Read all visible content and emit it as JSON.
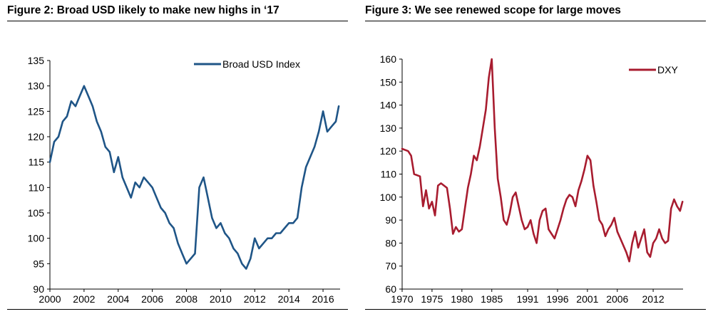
{
  "figures": [
    {
      "title": "Figure 2: Broad USD likely to make new highs in ‘17",
      "color": "#1f5587",
      "chart_data": {
        "type": "line",
        "title": "Figure 2: Broad USD likely to make new highs in ‘17",
        "xlabel": "",
        "ylabel": "",
        "xlim": [
          2000,
          2017
        ],
        "ylim": [
          90,
          135
        ],
        "xticks": [
          2000,
          2002,
          2004,
          2006,
          2008,
          2010,
          2012,
          2014,
          2016
        ],
        "yticks": [
          90,
          95,
          100,
          105,
          110,
          115,
          120,
          125,
          130,
          135
        ],
        "legend_position": "top-right",
        "grid": false,
        "series": [
          {
            "name": "Broad USD Index",
            "color": "#1f5587",
            "x": [
              2000.0,
              2000.25,
              2000.5,
              2000.75,
              2001.0,
              2001.25,
              2001.5,
              2001.75,
              2002.0,
              2002.25,
              2002.5,
              2002.75,
              2003.0,
              2003.25,
              2003.5,
              2003.75,
              2004.0,
              2004.25,
              2004.5,
              2004.75,
              2005.0,
              2005.25,
              2005.5,
              2005.75,
              2006.0,
              2006.25,
              2006.5,
              2006.75,
              2007.0,
              2007.25,
              2007.5,
              2007.75,
              2008.0,
              2008.25,
              2008.5,
              2008.75,
              2009.0,
              2009.25,
              2009.5,
              2009.75,
              2010.0,
              2010.25,
              2010.5,
              2010.75,
              2011.0,
              2011.25,
              2011.5,
              2011.75,
              2012.0,
              2012.25,
              2012.5,
              2012.75,
              2013.0,
              2013.25,
              2013.5,
              2013.75,
              2014.0,
              2014.25,
              2014.5,
              2014.75,
              2015.0,
              2015.25,
              2015.5,
              2015.75,
              2016.0,
              2016.25,
              2016.5,
              2016.75,
              2016.92
            ],
            "y": [
              115,
              119,
              120,
              123,
              124,
              127,
              126,
              128,
              130,
              128,
              126,
              123,
              121,
              118,
              117,
              113,
              116,
              112,
              110,
              108,
              111,
              110,
              112,
              111,
              110,
              108,
              106,
              105,
              103,
              102,
              99,
              97,
              95,
              96,
              97,
              110,
              112,
              108,
              104,
              102,
              103,
              101,
              100,
              98,
              97,
              95,
              94,
              96,
              100,
              98,
              99,
              100,
              100,
              101,
              101,
              102,
              103,
              103,
              104,
              110,
              114,
              116,
              118,
              121,
              125,
              121,
              122,
              123,
              126
            ]
          }
        ]
      }
    },
    {
      "title": "Figure 3: We see renewed scope for large moves",
      "color": "#a81c2f",
      "chart_data": {
        "type": "line",
        "title": "Figure 3: We see renewed scope for large moves",
        "xlabel": "",
        "ylabel": "",
        "xlim": [
          1970,
          2017
        ],
        "ylim": [
          60,
          160
        ],
        "xticks": [
          1970,
          1975,
          1980,
          1985,
          1991,
          1996,
          2001,
          2006,
          2012
        ],
        "yticks": [
          60,
          70,
          80,
          90,
          100,
          110,
          120,
          130,
          140,
          150,
          160
        ],
        "legend_position": "top-right",
        "grid": false,
        "series": [
          {
            "name": "DXY",
            "color": "#a81c2f",
            "x": [
              1970.0,
              1971.0,
              1971.5,
              1972.0,
              1973.0,
              1973.5,
              1974.0,
              1974.5,
              1975.0,
              1975.5,
              1976.0,
              1976.5,
              1977.5,
              1978.0,
              1978.5,
              1979.0,
              1979.5,
              1980.0,
              1980.5,
              1981.0,
              1981.5,
              1982.0,
              1982.5,
              1983.0,
              1983.5,
              1984.0,
              1984.5,
              1985.0,
              1985.2,
              1985.5,
              1986.0,
              1986.5,
              1987.0,
              1987.5,
              1988.0,
              1988.5,
              1989.0,
              1989.5,
              1990.0,
              1990.5,
              1991.0,
              1991.5,
              1992.0,
              1992.5,
              1993.0,
              1993.5,
              1994.0,
              1994.5,
              1995.0,
              1995.5,
              1996.0,
              1996.5,
              1997.0,
              1997.5,
              1998.0,
              1998.5,
              1999.0,
              1999.5,
              2000.0,
              2000.5,
              2001.0,
              2001.5,
              2002.0,
              2002.5,
              2003.0,
              2003.5,
              2004.0,
              2004.5,
              2005.0,
              2005.5,
              2006.0,
              2006.5,
              2007.0,
              2007.5,
              2008.0,
              2008.5,
              2009.0,
              2009.5,
              2010.0,
              2010.5,
              2011.0,
              2011.5,
              2012.0,
              2012.5,
              2013.0,
              2013.5,
              2014.0,
              2014.5,
              2015.0,
              2015.5,
              2016.0,
              2016.5,
              2016.9
            ],
            "y": [
              121,
              120,
              118,
              110,
              109,
              96,
              103,
              95,
              98,
              92,
              105,
              106,
              104,
              95,
              84,
              87,
              85,
              86,
              95,
              104,
              110,
              118,
              116,
              122,
              130,
              138,
              152,
              160,
              148,
              130,
              108,
              100,
              90,
              88,
              93,
              100,
              102,
              96,
              90,
              86,
              87,
              90,
              84,
              80,
              90,
              94,
              95,
              86,
              84,
              82,
              86,
              90,
              95,
              99,
              101,
              100,
              96,
              103,
              107,
              112,
              118,
              116,
              105,
              98,
              90,
              88,
              83,
              86,
              88,
              91,
              85,
              82,
              79,
              76,
              72,
              80,
              85,
              78,
              82,
              86,
              76,
              74,
              80,
              82,
              86,
              82,
              80,
              81,
              95,
              99,
              96,
              94,
              98
            ]
          }
        ]
      }
    }
  ]
}
